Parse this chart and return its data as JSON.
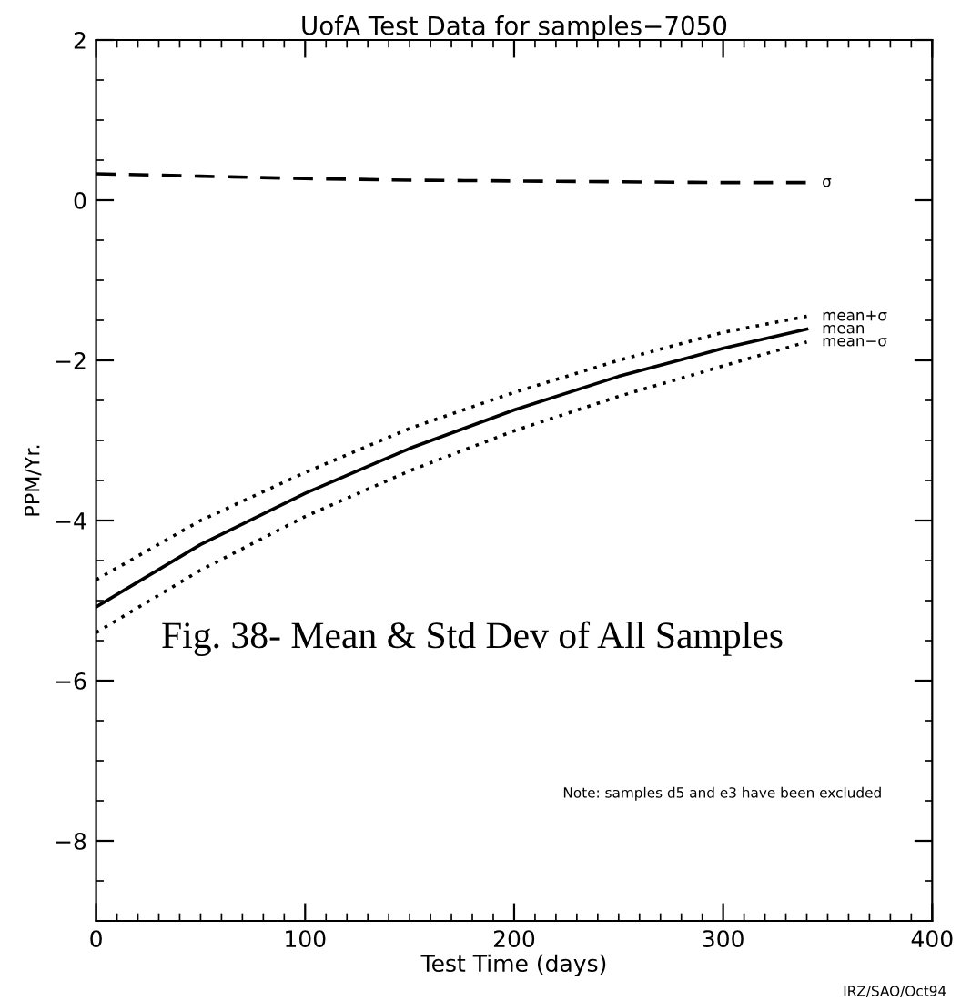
{
  "chart_data": {
    "type": "line",
    "title": "UofA Test Data for samples−7050",
    "xlabel": "Test Time (days)",
    "ylabel": "PPM/Yr.",
    "xlim": [
      0,
      400
    ],
    "xticks": [
      0,
      100,
      200,
      300,
      400
    ],
    "ylim": [
      -9,
      2
    ],
    "yticks": [
      -8,
      -6,
      -4,
      -2,
      0,
      2
    ],
    "grid": false,
    "legend": false,
    "marker": "none",
    "series": [
      {
        "name": "σ",
        "color": "#000000",
        "line_style": "dashed",
        "x": [
          0,
          50,
          100,
          150,
          200,
          250,
          300,
          340
        ],
        "values": [
          0.33,
          0.3,
          0.27,
          0.25,
          0.24,
          0.23,
          0.22,
          0.22
        ]
      },
      {
        "name": "mean+σ",
        "color": "#000000",
        "line_style": "dotted",
        "x": [
          0,
          50,
          100,
          150,
          200,
          250,
          300,
          340
        ],
        "values": [
          -4.74,
          -4.0,
          -3.4,
          -2.85,
          -2.4,
          -2.0,
          -1.65,
          -1.45
        ]
      },
      {
        "name": "mean",
        "color": "#000000",
        "line_style": "solid",
        "x": [
          0,
          50,
          100,
          150,
          200,
          250,
          300,
          340
        ],
        "values": [
          -5.08,
          -4.3,
          -3.66,
          -3.1,
          -2.62,
          -2.2,
          -1.85,
          -1.61
        ]
      },
      {
        "name": "mean−σ",
        "color": "#000000",
        "line_style": "dotted",
        "x": [
          0,
          50,
          100,
          150,
          200,
          250,
          300,
          340
        ],
        "values": [
          -5.4,
          -4.62,
          -3.95,
          -3.38,
          -2.88,
          -2.45,
          -2.07,
          -1.77
        ]
      }
    ],
    "annotations": [
      "Fig. 38- Mean & Std Dev of All Samples",
      "Note: samples d5 and e3 have been excluded",
      "IRZ/SAO/Oct94"
    ]
  }
}
